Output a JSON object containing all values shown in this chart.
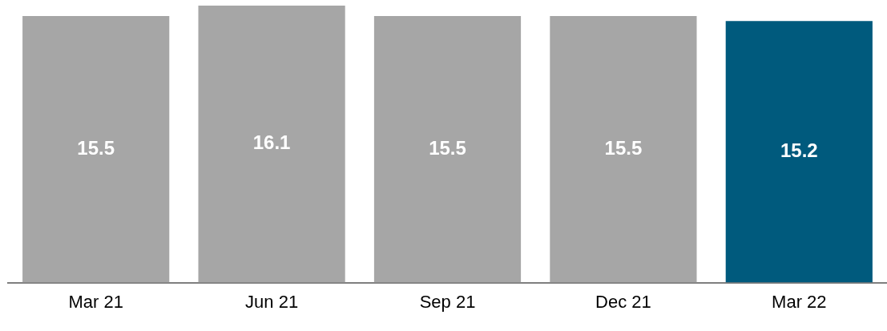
{
  "chart_data": {
    "type": "bar",
    "categories": [
      "Mar 21",
      "Jun 21",
      "Sep 21",
      "Dec 21",
      "Mar 22"
    ],
    "values": [
      15.5,
      16.1,
      15.5,
      15.5,
      15.2
    ],
    "colors": [
      "#a6a6a6",
      "#a6a6a6",
      "#a6a6a6",
      "#a6a6a6",
      "#005a7d"
    ],
    "data_labels": true
  }
}
